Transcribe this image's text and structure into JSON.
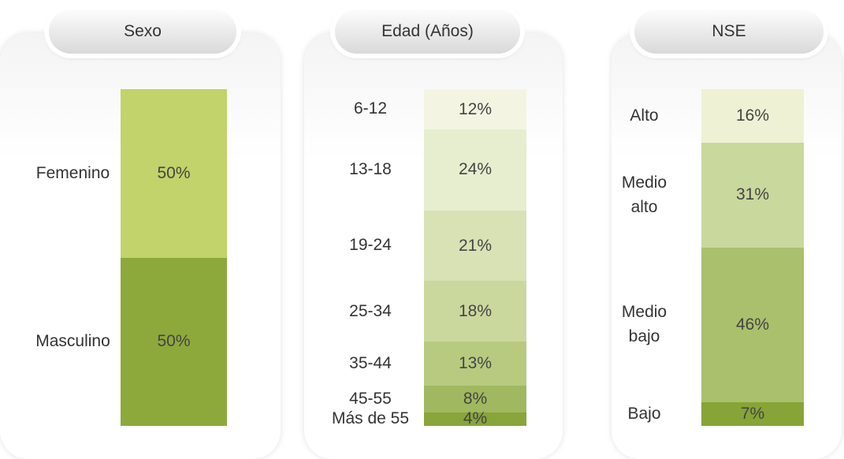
{
  "chart_data": [
    {
      "type": "stacked-bar",
      "title": "Sexo",
      "categories": [
        "Femenino",
        "Masculino"
      ],
      "values": [
        50,
        50
      ],
      "value_labels": [
        "50%",
        "50%"
      ],
      "colors": [
        "#c1d36a",
        "#8ea93b"
      ]
    },
    {
      "type": "stacked-bar",
      "title": "Edad (Años)",
      "categories": [
        "6-12",
        "13-18",
        "19-24",
        "25-34",
        "35-44",
        "45-55",
        "Más de 55"
      ],
      "values": [
        12,
        24,
        21,
        18,
        13,
        8,
        4
      ],
      "value_labels": [
        "12%",
        "24%",
        "21%",
        "18%",
        "13%",
        "8%",
        "4%"
      ],
      "colors": [
        "#f3f5e2",
        "#e7edcf",
        "#d8e2b5",
        "#cad89e",
        "#b7ca80",
        "#a0b85f",
        "#88a53a"
      ]
    },
    {
      "type": "stacked-bar",
      "title": "NSE",
      "categories": [
        "Alto",
        "Medio alto",
        "Medio bajo",
        "Bajo"
      ],
      "values": [
        16,
        31,
        46,
        7
      ],
      "value_labels": [
        "16%",
        "31%",
        "46%",
        "7%"
      ],
      "colors": [
        "#eef1d4",
        "#c9d89c",
        "#aac06d",
        "#87a436"
      ]
    }
  ]
}
